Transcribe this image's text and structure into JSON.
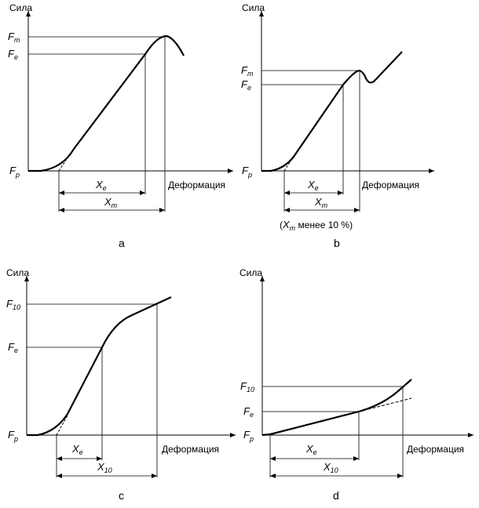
{
  "axis": {
    "y_label": "Сила",
    "x_label": "Деформация"
  },
  "panel_a": {
    "caption": "a",
    "fm": {
      "sym": "F",
      "sub": "m"
    },
    "fe": {
      "sym": "F",
      "sub": "e"
    },
    "fp": {
      "sym": "F",
      "sub": "p"
    },
    "xe": {
      "sym": "X",
      "sub": "e"
    },
    "xm": {
      "sym": "X",
      "sub": "m"
    }
  },
  "panel_b": {
    "caption": "b",
    "fm": {
      "sym": "F",
      "sub": "m"
    },
    "fe": {
      "sym": "F",
      "sub": "e"
    },
    "fp": {
      "sym": "F",
      "sub": "p"
    },
    "xe": {
      "sym": "X",
      "sub": "e"
    },
    "xm": {
      "sym": "X",
      "sub": "m"
    },
    "note": {
      "open": "(",
      "sym": "X",
      "sub": "m",
      "rest": " менее 10 %)"
    }
  },
  "panel_c": {
    "caption": "c",
    "f10": {
      "sym": "F",
      "sub": "10"
    },
    "fe": {
      "sym": "F",
      "sub": "e"
    },
    "fp": {
      "sym": "F",
      "sub": "p"
    },
    "xe": {
      "sym": "X",
      "sub": "e"
    },
    "x10": {
      "sym": "X",
      "sub": "10"
    }
  },
  "panel_d": {
    "caption": "d",
    "f10": {
      "sym": "F",
      "sub": "10"
    },
    "fe": {
      "sym": "F",
      "sub": "e"
    },
    "fp": {
      "sym": "F",
      "sub": "p"
    },
    "xe": {
      "sym": "X",
      "sub": "e"
    },
    "x10": {
      "sym": "X",
      "sub": "10"
    }
  }
}
